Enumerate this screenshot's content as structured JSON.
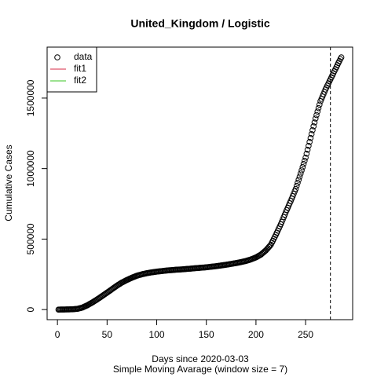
{
  "chart_data": {
    "type": "scatter",
    "title": "United_Kingdom / Logistic",
    "x_label": "Days since 2020-03-03",
    "subtitle": "Simple Moving Avarage (window size = 7)",
    "y_label": "Cumulative Cases",
    "xlim": [
      -10.4,
      297.4
    ],
    "ylim": [
      -71600,
      1861600
    ],
    "xticks": [
      0,
      50,
      100,
      150,
      200,
      250
    ],
    "yticks": [
      0,
      500000,
      1000000,
      1500000
    ],
    "vline": 275,
    "legend_position": "topleft",
    "legend": [
      {
        "name": "data",
        "color": "#000000",
        "symbol": "circle"
      },
      {
        "name": "fit1",
        "color": "#DF536B",
        "symbol": "line"
      },
      {
        "name": "fit2",
        "color": "#61D04F",
        "symbol": "line"
      }
    ],
    "series": [
      {
        "name": "data",
        "color": "#000000",
        "x": [
          1,
          2,
          3,
          4,
          5,
          6,
          7,
          8,
          9,
          10,
          11,
          12,
          13,
          14,
          15,
          16,
          17,
          18,
          19,
          20,
          21,
          22,
          23,
          24,
          25,
          26,
          27,
          28,
          29,
          30,
          31,
          32,
          33,
          34,
          35,
          36,
          37,
          38,
          39,
          40,
          41,
          42,
          43,
          44,
          45,
          46,
          47,
          48,
          49,
          50,
          51,
          52,
          53,
          54,
          55,
          56,
          57,
          58,
          59,
          60,
          61,
          62,
          63,
          64,
          65,
          66,
          67,
          68,
          69,
          70,
          71,
          72,
          73,
          74,
          75,
          76,
          77,
          78,
          79,
          80,
          81,
          82,
          83,
          84,
          85,
          86,
          87,
          88,
          89,
          90,
          91,
          92,
          93,
          94,
          95,
          96,
          97,
          98,
          99,
          100,
          101,
          102,
          103,
          104,
          105,
          106,
          107,
          108,
          109,
          110,
          111,
          112,
          113,
          114,
          115,
          116,
          117,
          118,
          119,
          120,
          121,
          122,
          123,
          124,
          125,
          126,
          127,
          128,
          129,
          130,
          131,
          132,
          133,
          134,
          135,
          136,
          137,
          138,
          139,
          140,
          141,
          142,
          143,
          144,
          145,
          146,
          147,
          148,
          149,
          150,
          151,
          152,
          153,
          154,
          155,
          156,
          157,
          158,
          159,
          160,
          161,
          162,
          163,
          164,
          165,
          166,
          167,
          168,
          169,
          170,
          171,
          172,
          173,
          174,
          175,
          176,
          177,
          178,
          179,
          180,
          181,
          182,
          183,
          184,
          185,
          186,
          187,
          188,
          189,
          190,
          191,
          192,
          193,
          194,
          195,
          196,
          197,
          198,
          199,
          200,
          201,
          202,
          203,
          204,
          205,
          206,
          207,
          208,
          209,
          210,
          211,
          212,
          213,
          214,
          215,
          216,
          217,
          218,
          219,
          220,
          221,
          222,
          223,
          224,
          225,
          226,
          227,
          228,
          229,
          230,
          231,
          232,
          233,
          234,
          235,
          236,
          237,
          238,
          239,
          240,
          241,
          242,
          243,
          244,
          245,
          246,
          247,
          248,
          249,
          250,
          251,
          252,
          253,
          254,
          255,
          256,
          257,
          258,
          259,
          260,
          261,
          262,
          263,
          264,
          265,
          266,
          267,
          268,
          269,
          270,
          271,
          272,
          273,
          274,
          275,
          276,
          277,
          278,
          279,
          280,
          281,
          282,
          283,
          284,
          285,
          286
        ],
        "values": [
          0,
          125,
          250,
          375,
          500,
          600,
          700,
          800,
          900,
          1000,
          1200,
          1400,
          1600,
          1800,
          2000,
          2600,
          3200,
          3800,
          4400,
          5000,
          6800,
          8600,
          10400,
          12200,
          14000,
          17200,
          20400,
          23600,
          26800,
          30000,
          34000,
          38000,
          42000,
          46000,
          50000,
          54400,
          58800,
          63200,
          67600,
          72000,
          76800,
          81600,
          86400,
          91200,
          96000,
          100800,
          105600,
          110400,
          115200,
          120000,
          125000,
          130000,
          135000,
          140000,
          145000,
          150000,
          155000,
          160000,
          165000,
          170000,
          174400,
          178800,
          183200,
          187600,
          192000,
          195600,
          199200,
          202800,
          206400,
          210000,
          213200,
          216400,
          219600,
          222800,
          226000,
          228800,
          231600,
          234400,
          237200,
          240000,
          242000,
          244000,
          246000,
          248000,
          250000,
          251600,
          253200,
          254800,
          256400,
          258000,
          259200,
          260400,
          261600,
          262800,
          264000,
          265000,
          266000,
          267000,
          268000,
          269000,
          269800,
          270600,
          271400,
          272200,
          273000,
          273800,
          274600,
          275400,
          276200,
          277000,
          277600,
          278200,
          278800,
          279400,
          280000,
          280600,
          281200,
          281800,
          282400,
          283000,
          283400,
          283800,
          284200,
          284600,
          285000,
          285600,
          286200,
          286800,
          287400,
          288000,
          288600,
          289200,
          289800,
          290400,
          291000,
          291600,
          292200,
          292800,
          293400,
          294000,
          294600,
          295200,
          295800,
          296400,
          297000,
          297600,
          298200,
          298800,
          299400,
          300000,
          300800,
          301600,
          302400,
          303200,
          304000,
          304800,
          305600,
          306400,
          307200,
          308000,
          309000,
          310000,
          311000,
          312000,
          313000,
          314000,
          315000,
          316000,
          317000,
          318000,
          319200,
          320400,
          321600,
          322800,
          324000,
          325200,
          326400,
          327600,
          328800,
          330000,
          331400,
          332800,
          334200,
          335600,
          337000,
          338600,
          340200,
          341800,
          343400,
          345000,
          347200,
          349400,
          351600,
          353800,
          356000,
          358800,
          361600,
          364400,
          367200,
          370000,
          374000,
          378000,
          382000,
          386000,
          390000,
          396000,
          402000,
          408000,
          414000,
          420000,
          428000,
          436000,
          444000,
          452000,
          460000,
          474000,
          488000,
          502000,
          516000,
          530000,
          545000,
          560000,
          575000,
          590000,
          605000,
          622000,
          639000,
          656000,
          673000,
          690000,
          706000,
          722000,
          738000,
          754000,
          770000,
          787000,
          804000,
          821000,
          838000,
          855000,
          877000,
          899000,
          921000,
          943000,
          965000,
          987600,
          1010200,
          1032800,
          1055400,
          1078000,
          1105800,
          1133600,
          1161400,
          1189200,
          1217000,
          1244600,
          1272200,
          1299800,
          1327400,
          1355000,
          1379600,
          1404200,
          1428800,
          1453400,
          1478000,
          1494600,
          1511200,
          1527800,
          1544400,
          1561000,
          1575400,
          1589800,
          1604200,
          1618600,
          1633000,
          1647400,
          1661800,
          1676200,
          1690600,
          1705000,
          1719400,
          1733800,
          1748200,
          1762600,
          1777000,
          1789000
        ]
      }
    ]
  }
}
